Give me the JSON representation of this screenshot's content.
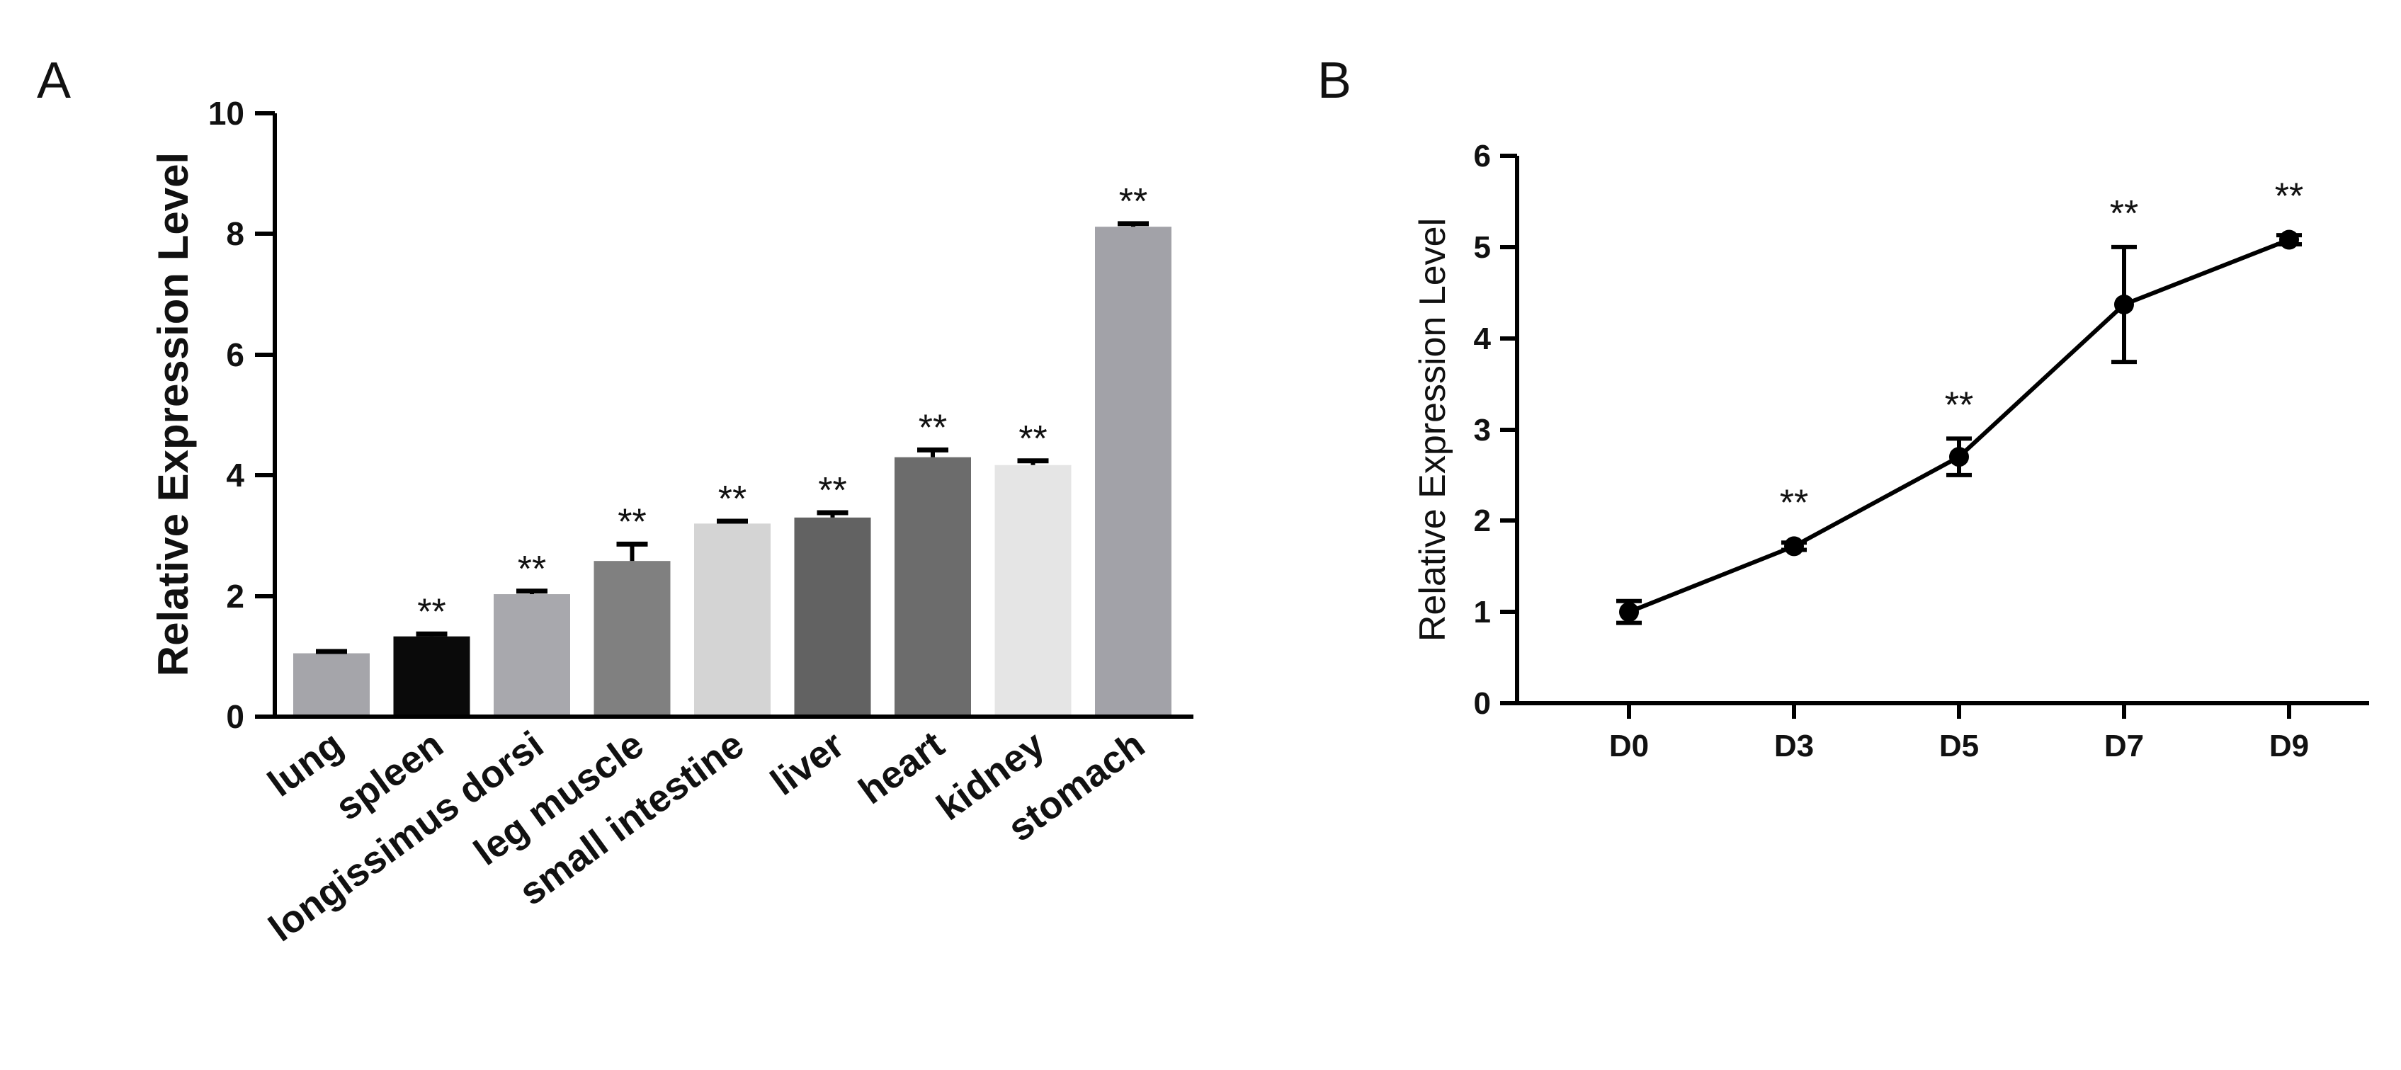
{
  "chart_data": [
    {
      "panel": "A",
      "type": "bar",
      "ylabel": "Relative Expression Level",
      "xlabel": "",
      "ylim": [
        0,
        10
      ],
      "yticks": [
        "0",
        "2",
        "4",
        "6",
        "8",
        "10"
      ],
      "categories": [
        "lung",
        "spleen",
        "longissimus dorsi",
        "leg muscle",
        "small intestine",
        "liver",
        "heart",
        "kidney",
        "stomach"
      ],
      "values": [
        1.05,
        1.33,
        2.03,
        2.58,
        3.2,
        3.3,
        4.3,
        4.17,
        8.12
      ],
      "errors": [
        0.03,
        0.04,
        0.05,
        0.28,
        0.04,
        0.08,
        0.12,
        0.07,
        0.05
      ],
      "significance": [
        "",
        "**",
        "**",
        "**",
        "**",
        "**",
        "**",
        "**",
        "**"
      ],
      "bar_colors": [
        "#a5a5aa",
        "#0a0a0a",
        "#a8a8ad",
        "#808080",
        "#d4d4d4",
        "#626262",
        "#6c6c6c",
        "#e5e5e5",
        "#a2a2a8"
      ]
    },
    {
      "panel": "B",
      "type": "line",
      "ylabel": "Relative Expression Level",
      "xlabel": "",
      "ylim": [
        0,
        6
      ],
      "yticks": [
        "0",
        "1",
        "2",
        "3",
        "4",
        "5",
        "6"
      ],
      "categories": [
        "D0",
        "D3",
        "D5",
        "D7",
        "D9"
      ],
      "values": [
        1.0,
        1.72,
        2.7,
        4.37,
        5.08
      ],
      "errors": [
        0.12,
        0.04,
        0.2,
        0.63,
        0.05
      ],
      "significance": [
        "",
        "**",
        "**",
        "**",
        "**"
      ],
      "line_color": "#000000"
    }
  ]
}
